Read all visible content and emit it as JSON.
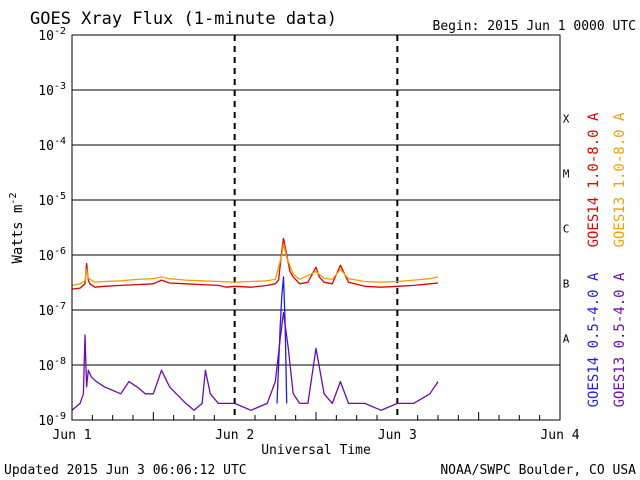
{
  "chart_data": {
    "type": "line",
    "title": "GOES Xray Flux (1-minute data)",
    "begin_text": "Begin:  2015 Jun 1 0000 UTC",
    "ylabel": "Watts m",
    "ylabel_sup": "-2",
    "xlabel": "Universal Time",
    "x_ticks": [
      "Jun 1",
      "Jun 2",
      "Jun 3",
      "Jun 4"
    ],
    "xlim_days": [
      0,
      3
    ],
    "y_scale": "log",
    "ylim": [
      1e-09,
      0.01
    ],
    "y_tick_exponents": [
      "-2",
      "-3",
      "-4",
      "-5",
      "-6",
      "-7",
      "-8",
      "-9"
    ],
    "flare_classes": [
      "X",
      "M",
      "C",
      "B",
      "A"
    ],
    "grid": "horizontal at each decade, dashed vertical at day boundaries",
    "series": [
      {
        "name": "GOES14 1.0-8.0 A",
        "color": "#e00000",
        "x": [
          0,
          0.05,
          0.08,
          0.09,
          0.1,
          0.11,
          0.14,
          0.2,
          0.3,
          0.4,
          0.5,
          0.55,
          0.6,
          0.7,
          0.8,
          0.9,
          0.95,
          1.0,
          1.1,
          1.2,
          1.25,
          1.27,
          1.29,
          1.3,
          1.32,
          1.34,
          1.36,
          1.4,
          1.45,
          1.5,
          1.52,
          1.55,
          1.6,
          1.65,
          1.7,
          1.8,
          1.9,
          2.0,
          2.1,
          2.2,
          2.25
        ],
        "y": [
          2.4e-07,
          2.5e-07,
          3e-07,
          7e-07,
          3.5e-07,
          3e-07,
          2.6e-07,
          2.7e-07,
          2.8e-07,
          2.9e-07,
          3e-07,
          3.5e-07,
          3.1e-07,
          3e-07,
          2.9e-07,
          2.8e-07,
          2.6e-07,
          2.7e-07,
          2.6e-07,
          2.8e-07,
          3e-07,
          3.5e-07,
          1.2e-06,
          2e-06,
          1e-06,
          5e-07,
          4e-07,
          3e-07,
          3.2e-07,
          6e-07,
          4e-07,
          3.2e-07,
          3e-07,
          6.5e-07,
          3.2e-07,
          2.7e-07,
          2.6e-07,
          2.7e-07,
          2.8e-07,
          3e-07,
          3.1e-07
        ]
      },
      {
        "name": "GOES13 1.0-8.0 A",
        "color": "#f0a000",
        "x": [
          0,
          0.05,
          0.08,
          0.09,
          0.1,
          0.14,
          0.2,
          0.3,
          0.4,
          0.5,
          0.55,
          0.6,
          0.7,
          0.8,
          0.9,
          1.0,
          1.1,
          1.2,
          1.25,
          1.29,
          1.3,
          1.32,
          1.36,
          1.4,
          1.5,
          1.55,
          1.6,
          1.65,
          1.7,
          1.8,
          1.9,
          2.0,
          2.1,
          2.2,
          2.25
        ],
        "y": [
          2.8e-07,
          3e-07,
          3.4e-07,
          5.5e-07,
          3.8e-07,
          3.2e-07,
          3.3e-07,
          3.4e-07,
          3.6e-07,
          3.7e-07,
          4e-07,
          3.7e-07,
          3.5e-07,
          3.4e-07,
          3.3e-07,
          3.2e-07,
          3.3e-07,
          3.4e-07,
          3.6e-07,
          1e-06,
          1.6e-06,
          9e-07,
          4.5e-07,
          3.6e-07,
          5e-07,
          3.8e-07,
          3.6e-07,
          5.5e-07,
          3.7e-07,
          3.3e-07,
          3.2e-07,
          3.3e-07,
          3.5e-07,
          3.7e-07,
          4e-07
        ]
      },
      {
        "name": "GOES14 0.5-4.0 A",
        "color": "#1e1ee0",
        "x": [
          1.26,
          1.28,
          1.29,
          1.3,
          1.31,
          1.32
        ],
        "y": [
          2e-09,
          5e-08,
          1.8e-07,
          4e-07,
          6e-08,
          2e-09
        ]
      },
      {
        "name": "GOES13 0.5-4.0 A",
        "color": "#6a0dad",
        "x": [
          0,
          0.05,
          0.07,
          0.08,
          0.09,
          0.1,
          0.12,
          0.15,
          0.2,
          0.3,
          0.35,
          0.4,
          0.45,
          0.5,
          0.55,
          0.6,
          0.7,
          0.75,
          0.8,
          0.82,
          0.85,
          0.9,
          1.0,
          1.1,
          1.2,
          1.25,
          1.28,
          1.3,
          1.33,
          1.36,
          1.4,
          1.45,
          1.5,
          1.55,
          1.6,
          1.65,
          1.7,
          1.8,
          1.9,
          2.0,
          2.1,
          2.2,
          2.25
        ],
        "y": [
          1.5e-09,
          2e-09,
          3e-09,
          3.5e-08,
          4e-09,
          8e-09,
          6e-09,
          5e-09,
          4e-09,
          3e-09,
          5e-09,
          4e-09,
          3e-09,
          3e-09,
          8e-09,
          4e-09,
          2e-09,
          1.5e-09,
          2e-09,
          8e-09,
          3e-09,
          2e-09,
          2e-09,
          1.5e-09,
          2e-09,
          5e-09,
          3e-08,
          9e-08,
          2e-08,
          3e-09,
          2e-09,
          2e-09,
          2e-08,
          3e-09,
          2e-09,
          5e-09,
          2e-09,
          2e-09,
          1.5e-09,
          2e-09,
          2e-09,
          3e-09,
          5e-09
        ]
      }
    ]
  },
  "footer": {
    "updated": "Updated 2015 Jun  3 06:06:12 UTC",
    "source": "NOAA/SWPC Boulder, CO USA"
  }
}
